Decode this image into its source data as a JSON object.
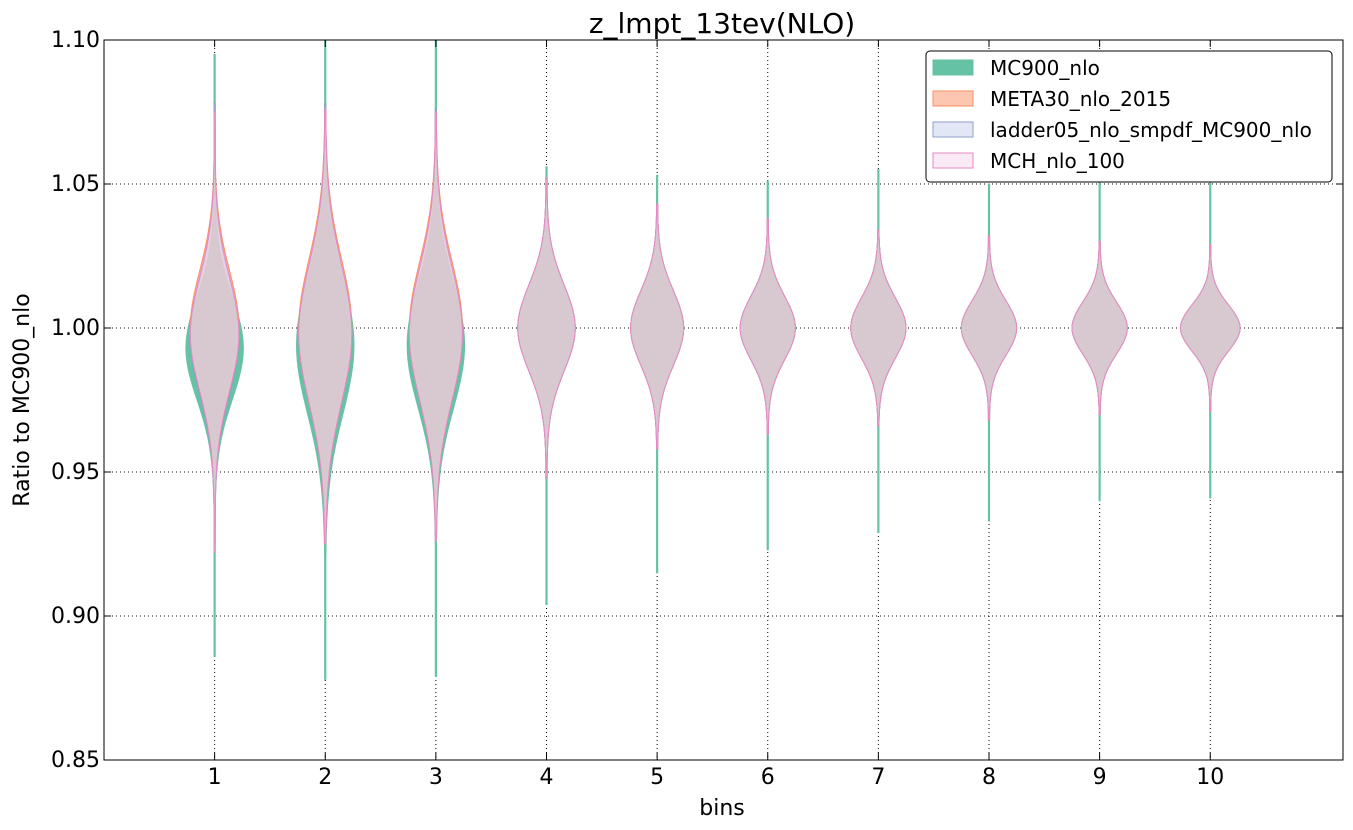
{
  "chart_data": {
    "type": "violin",
    "title": "z_lmpt_13tev(NLO)",
    "xlabel": "bins",
    "ylabel": "Ratio to MC900_nlo",
    "ylim": [
      0.85,
      1.1
    ],
    "xlim": [
      0,
      11.2
    ],
    "grid": true,
    "legend_position": "top-right",
    "categories": [
      "1",
      "2",
      "3",
      "4",
      "5",
      "6",
      "7",
      "8",
      "9",
      "10"
    ],
    "x": [
      1,
      2,
      3,
      4,
      5,
      6,
      7,
      8,
      9,
      10
    ],
    "yticks": [
      {
        "value": 0.85,
        "label": "0.85"
      },
      {
        "value": 0.9,
        "label": "0.90"
      },
      {
        "value": 0.95,
        "label": "0.95"
      },
      {
        "value": 1.0,
        "label": "1.00"
      },
      {
        "value": 1.05,
        "label": "1.05"
      },
      {
        "value": 1.1,
        "label": "1.10"
      }
    ],
    "series": [
      {
        "name": "MC900_nlo",
        "fill": "#66c2a5",
        "stroke": "#66c2a5",
        "opacity": 1.0,
        "violins": [
          {
            "center": 0.993,
            "min": 0.886,
            "max": 1.095,
            "width": 0.26,
            "sd": 0.018
          },
          {
            "center": 0.994,
            "min": 0.878,
            "max": 1.1,
            "width": 0.26,
            "sd": 0.024
          },
          {
            "center": 0.994,
            "min": 0.879,
            "max": 1.1,
            "width": 0.26,
            "sd": 0.022
          },
          {
            "center": 1.0,
            "min": 0.904,
            "max": 1.056,
            "width": 0.26,
            "sd": 0.015
          },
          {
            "center": 1.0,
            "min": 0.915,
            "max": 1.053,
            "width": 0.24,
            "sd": 0.013
          },
          {
            "center": 1.0,
            "min": 0.923,
            "max": 1.051,
            "width": 0.25,
            "sd": 0.011
          },
          {
            "center": 1.0,
            "min": 0.929,
            "max": 1.055,
            "width": 0.25,
            "sd": 0.0105
          },
          {
            "center": 1.0,
            "min": 0.933,
            "max": 1.05,
            "width": 0.25,
            "sd": 0.0095
          },
          {
            "center": 1.0,
            "min": 0.94,
            "max": 1.056,
            "width": 0.25,
            "sd": 0.009
          },
          {
            "center": 1.0,
            "min": 0.941,
            "max": 1.056,
            "width": 0.27,
            "sd": 0.008
          }
        ]
      },
      {
        "name": "META30_nlo_2015",
        "fill": "#fc8d62",
        "stroke": "#fc8d62",
        "opacity": 0.5,
        "violins": [
          {
            "center": 1.0,
            "min": 0.932,
            "max": 1.07,
            "width": 0.22,
            "sd": 0.02
          },
          {
            "center": 1.0,
            "min": 0.93,
            "max": 1.075,
            "width": 0.24,
            "sd": 0.024
          },
          {
            "center": 1.0,
            "min": 0.93,
            "max": 1.072,
            "width": 0.24,
            "sd": 0.023
          },
          {
            "center": 1.0,
            "min": 0.948,
            "max": 1.052,
            "width": 0.26,
            "sd": 0.015
          },
          {
            "center": 1.0,
            "min": 0.958,
            "max": 1.043,
            "width": 0.24,
            "sd": 0.013
          },
          {
            "center": 1.0,
            "min": 0.963,
            "max": 1.038,
            "width": 0.25,
            "sd": 0.011
          },
          {
            "center": 1.0,
            "min": 0.966,
            "max": 1.034,
            "width": 0.25,
            "sd": 0.0105
          },
          {
            "center": 1.0,
            "min": 0.968,
            "max": 1.032,
            "width": 0.25,
            "sd": 0.0095
          },
          {
            "center": 1.0,
            "min": 0.97,
            "max": 1.03,
            "width": 0.25,
            "sd": 0.009
          },
          {
            "center": 1.0,
            "min": 0.971,
            "max": 1.029,
            "width": 0.27,
            "sd": 0.008
          }
        ]
      },
      {
        "name": "ladder05_nlo_smpdf_MC900_nlo",
        "fill": "#c5d0ec",
        "stroke": "#8da0cb",
        "opacity": 0.5,
        "violins": [
          {
            "center": 0.997,
            "min": 0.925,
            "max": 1.078,
            "width": 0.22,
            "sd": 0.02
          },
          {
            "center": 0.998,
            "min": 0.925,
            "max": 1.078,
            "width": 0.24,
            "sd": 0.024
          },
          {
            "center": 0.998,
            "min": 0.928,
            "max": 1.076,
            "width": 0.24,
            "sd": 0.023
          },
          {
            "center": 1.0,
            "min": 0.948,
            "max": 1.052,
            "width": 0.26,
            "sd": 0.015
          },
          {
            "center": 1.0,
            "min": 0.958,
            "max": 1.043,
            "width": 0.24,
            "sd": 0.013
          },
          {
            "center": 1.0,
            "min": 0.963,
            "max": 1.038,
            "width": 0.25,
            "sd": 0.011
          },
          {
            "center": 1.0,
            "min": 0.966,
            "max": 1.034,
            "width": 0.25,
            "sd": 0.0105
          },
          {
            "center": 1.0,
            "min": 0.968,
            "max": 1.032,
            "width": 0.25,
            "sd": 0.0095
          },
          {
            "center": 1.0,
            "min": 0.97,
            "max": 1.03,
            "width": 0.25,
            "sd": 0.009
          },
          {
            "center": 1.0,
            "min": 0.971,
            "max": 1.029,
            "width": 0.27,
            "sd": 0.008
          }
        ]
      },
      {
        "name": "MCH_nlo_100",
        "fill": "#f6d6ec",
        "stroke": "#e78ac3",
        "opacity": 0.5,
        "violins": [
          {
            "center": 0.998,
            "min": 0.922,
            "max": 1.075,
            "width": 0.22,
            "sd": 0.02
          },
          {
            "center": 0.998,
            "min": 0.925,
            "max": 1.076,
            "width": 0.24,
            "sd": 0.024
          },
          {
            "center": 0.998,
            "min": 0.926,
            "max": 1.075,
            "width": 0.24,
            "sd": 0.023
          },
          {
            "center": 1.0,
            "min": 0.948,
            "max": 1.052,
            "width": 0.26,
            "sd": 0.015
          },
          {
            "center": 1.0,
            "min": 0.958,
            "max": 1.043,
            "width": 0.24,
            "sd": 0.013
          },
          {
            "center": 1.0,
            "min": 0.963,
            "max": 1.038,
            "width": 0.25,
            "sd": 0.011
          },
          {
            "center": 1.0,
            "min": 0.966,
            "max": 1.034,
            "width": 0.25,
            "sd": 0.0105
          },
          {
            "center": 1.0,
            "min": 0.968,
            "max": 1.032,
            "width": 0.25,
            "sd": 0.0095
          },
          {
            "center": 1.0,
            "min": 0.97,
            "max": 1.03,
            "width": 0.25,
            "sd": 0.009
          },
          {
            "center": 1.0,
            "min": 0.971,
            "max": 1.029,
            "width": 0.27,
            "sd": 0.008
          }
        ]
      }
    ]
  }
}
